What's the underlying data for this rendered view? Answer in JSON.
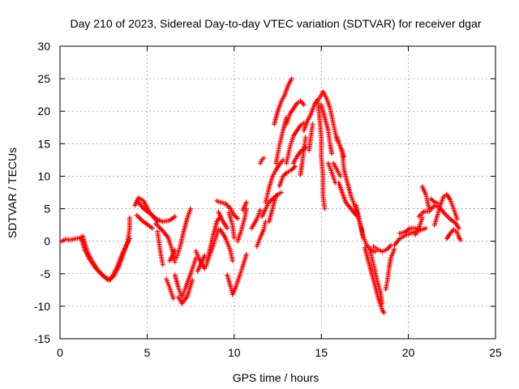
{
  "chart_data": {
    "type": "scatter",
    "title": "Day 210 of 2023, Sidereal Day-to-day VTEC variation (SDTVAR) for receiver dgar",
    "xlabel": "GPS time / hours",
    "ylabel": "SDTVAR / TECUs",
    "xlim": [
      0,
      25
    ],
    "ylim": [
      -15,
      30
    ],
    "xticks": [
      "0",
      "5",
      "10",
      "15",
      "20",
      "25"
    ],
    "yticks": [
      "-15",
      "-10",
      "-5",
      "0",
      "5",
      "10",
      "15",
      "20",
      "25",
      "30"
    ],
    "grid": true,
    "marker": "+",
    "color": "#ff0000",
    "tracks": [
      [
        [
          0.1,
          0.0
        ],
        [
          0.3,
          0.3
        ],
        [
          0.6,
          0.2
        ],
        [
          0.9,
          0.4
        ],
        [
          1.2,
          0.5
        ]
      ],
      [
        [
          1.2,
          0.6
        ],
        [
          1.4,
          -1.2
        ],
        [
          1.7,
          -2.8
        ],
        [
          2.0,
          -4.0
        ],
        [
          2.3,
          -4.8
        ],
        [
          2.6,
          -5.6
        ],
        [
          2.9,
          -5.9
        ],
        [
          3.2,
          -4.4
        ],
        [
          3.5,
          -2.4
        ],
        [
          3.8,
          -0.6
        ],
        [
          4.0,
          0.4
        ]
      ],
      [
        [
          1.3,
          0.8
        ],
        [
          1.6,
          -1.8
        ],
        [
          1.9,
          -3.3
        ],
        [
          2.2,
          -4.6
        ],
        [
          2.5,
          -5.4
        ],
        [
          2.8,
          -6.0
        ],
        [
          3.1,
          -5.3
        ],
        [
          3.4,
          -3.8
        ],
        [
          3.7,
          -1.5
        ],
        [
          3.9,
          0.0
        ]
      ],
      [
        [
          3.9,
          0.3
        ],
        [
          4.0,
          2.0
        ],
        [
          4.0,
          3.6
        ]
      ],
      [
        [
          4.3,
          5.5
        ],
        [
          4.5,
          6.7
        ],
        [
          4.8,
          6.2
        ],
        [
          5.1,
          4.6
        ],
        [
          5.4,
          3.6
        ],
        [
          5.6,
          3.0
        ]
      ],
      [
        [
          4.4,
          4.0
        ],
        [
          4.7,
          3.2
        ],
        [
          5.0,
          2.6
        ],
        [
          5.3,
          2.0
        ]
      ],
      [
        [
          4.5,
          6.0
        ],
        [
          4.8,
          5.0
        ],
        [
          5.2,
          4.2
        ],
        [
          5.5,
          3.5
        ],
        [
          5.9,
          3.0
        ],
        [
          6.3,
          3.2
        ],
        [
          6.6,
          3.8
        ]
      ],
      [
        [
          5.5,
          2.7
        ],
        [
          5.9,
          1.6
        ],
        [
          6.2,
          0.6
        ],
        [
          6.4,
          -1.0
        ],
        [
          6.6,
          -3.2
        ]
      ],
      [
        [
          5.6,
          1.5
        ],
        [
          5.7,
          -0.5
        ],
        [
          5.8,
          -2.2
        ],
        [
          5.9,
          -3.6
        ]
      ],
      [
        [
          6.1,
          -5.8
        ],
        [
          6.3,
          -7.2
        ],
        [
          6.5,
          -8.8
        ]
      ],
      [
        [
          6.6,
          -5.2
        ],
        [
          6.8,
          -7.2
        ],
        [
          7.0,
          -8.6
        ],
        [
          7.2,
          -7.2
        ],
        [
          7.5,
          -5.0
        ],
        [
          7.8,
          -2.6
        ]
      ],
      [
        [
          6.8,
          -8.6
        ],
        [
          7.0,
          -9.6
        ],
        [
          7.3,
          -8.5
        ],
        [
          7.6,
          -6.0
        ]
      ],
      [
        [
          6.7,
          -2.5
        ],
        [
          6.9,
          -0.8
        ],
        [
          7.1,
          1.5
        ],
        [
          7.3,
          3.5
        ],
        [
          7.5,
          5.0
        ]
      ],
      [
        [
          6.3,
          -3.0
        ],
        [
          6.6,
          -1.4
        ]
      ],
      [
        [
          7.8,
          -1.5
        ],
        [
          8.0,
          -2.8
        ],
        [
          8.3,
          -4.2
        ]
      ],
      [
        [
          7.9,
          -4.6
        ],
        [
          8.1,
          -3.4
        ],
        [
          8.3,
          -2.2
        ]
      ],
      [
        [
          8.4,
          -3.8
        ],
        [
          8.6,
          -1.2
        ],
        [
          8.8,
          1.0
        ],
        [
          9.0,
          3.0
        ],
        [
          9.2,
          3.8
        ]
      ],
      [
        [
          8.5,
          -2.8
        ],
        [
          8.7,
          -1.4
        ],
        [
          8.9,
          0.2
        ],
        [
          9.1,
          1.8
        ]
      ],
      [
        [
          9.1,
          4.5
        ],
        [
          9.3,
          3.3
        ],
        [
          9.6,
          2.0
        ]
      ],
      [
        [
          9.0,
          6.2
        ],
        [
          9.2,
          6.0
        ],
        [
          9.5,
          5.8
        ],
        [
          9.8,
          5.0
        ],
        [
          10.0,
          4.0
        ],
        [
          10.2,
          3.5
        ]
      ],
      [
        [
          9.2,
          1.8
        ],
        [
          9.5,
          0.5
        ],
        [
          9.8,
          -1.6
        ],
        [
          9.9,
          -3.0
        ]
      ],
      [
        [
          9.6,
          -5.2
        ],
        [
          9.8,
          -7.0
        ],
        [
          9.9,
          -8.2
        ],
        [
          10.1,
          -7.0
        ],
        [
          10.3,
          -5.4
        ],
        [
          10.5,
          -3.8
        ],
        [
          10.7,
          -2.0
        ]
      ],
      [
        [
          9.7,
          4.4
        ],
        [
          9.9,
          2.5
        ],
        [
          10.0,
          0.5
        ]
      ],
      [
        [
          10.2,
          0.0
        ],
        [
          10.4,
          1.6
        ],
        [
          10.6,
          3.5
        ],
        [
          10.7,
          5.0
        ]
      ],
      [
        [
          10.5,
          4.8
        ],
        [
          10.7,
          6.0
        ]
      ],
      [
        [
          11.0,
          2.0
        ],
        [
          11.3,
          3.4
        ],
        [
          11.5,
          4.8
        ]
      ],
      [
        [
          11.3,
          -0.8
        ],
        [
          11.5,
          0.6
        ],
        [
          11.7,
          1.8
        ],
        [
          11.8,
          3.0
        ]
      ],
      [
        [
          11.5,
          12.0
        ],
        [
          11.6,
          12.6
        ],
        [
          11.7,
          12.8
        ]
      ],
      [
        [
          11.6,
          3.8
        ],
        [
          11.8,
          5.0
        ],
        [
          12.0,
          6.0
        ],
        [
          12.2,
          6.5
        ],
        [
          12.5,
          7.2
        ],
        [
          12.7,
          7.5
        ]
      ],
      [
        [
          11.8,
          6.0
        ],
        [
          12.0,
          8.2
        ],
        [
          12.2,
          10.0
        ],
        [
          12.4,
          11.0
        ],
        [
          12.6,
          11.8
        ],
        [
          12.8,
          12.5
        ]
      ],
      [
        [
          12.0,
          3.0
        ],
        [
          12.2,
          5.0
        ],
        [
          12.4,
          7.0
        ]
      ],
      [
        [
          12.4,
          12.0
        ],
        [
          12.6,
          14.8
        ],
        [
          12.8,
          17.0
        ],
        [
          13.0,
          19.0
        ]
      ],
      [
        [
          12.3,
          18.0
        ],
        [
          12.5,
          20.0
        ],
        [
          12.7,
          21.5
        ],
        [
          12.9,
          22.5
        ],
        [
          13.1,
          24.0
        ],
        [
          13.3,
          25.0
        ]
      ],
      [
        [
          12.6,
          8.5
        ],
        [
          12.8,
          10.0
        ],
        [
          13.0,
          10.5
        ],
        [
          13.3,
          11.0
        ],
        [
          13.5,
          11.5
        ]
      ],
      [
        [
          13.0,
          18.0
        ],
        [
          13.2,
          19.6
        ],
        [
          13.4,
          20.4
        ],
        [
          13.6,
          21.2
        ],
        [
          13.8,
          21.6
        ],
        [
          14.0,
          21.0
        ]
      ],
      [
        [
          13.0,
          12.0
        ],
        [
          13.2,
          14.5
        ],
        [
          13.4,
          16.2
        ],
        [
          13.6,
          17.0
        ],
        [
          13.8,
          17.8
        ],
        [
          14.0,
          18.2
        ]
      ],
      [
        [
          13.4,
          12.0
        ],
        [
          13.6,
          13.0
        ],
        [
          13.8,
          13.8
        ],
        [
          14.1,
          14.4
        ]
      ],
      [
        [
          13.8,
          10.2
        ],
        [
          13.9,
          12.0
        ],
        [
          14.0,
          14.0
        ],
        [
          14.1,
          16.0
        ]
      ],
      [
        [
          14.0,
          17.0
        ],
        [
          14.2,
          18.5
        ],
        [
          14.4,
          19.5
        ],
        [
          14.6,
          21.0
        ],
        [
          14.8,
          21.8
        ]
      ],
      [
        [
          14.3,
          14.0
        ],
        [
          14.4,
          16.0
        ],
        [
          14.5,
          18.0
        ]
      ],
      [
        [
          14.8,
          21.5
        ],
        [
          14.9,
          19.0
        ],
        [
          15.0,
          16.0
        ],
        [
          15.0,
          13.0
        ],
        [
          15.1,
          10.0
        ],
        [
          15.1,
          7.0
        ],
        [
          15.2,
          5.0
        ]
      ],
      [
        [
          14.9,
          22.0
        ],
        [
          15.1,
          23.0
        ],
        [
          15.3,
          22.0
        ],
        [
          15.5,
          20.5
        ],
        [
          15.7,
          18.0
        ],
        [
          15.9,
          15.5
        ]
      ],
      [
        [
          15.0,
          21.0
        ],
        [
          15.2,
          19.0
        ],
        [
          15.4,
          17.0
        ],
        [
          15.5,
          15.0
        ],
        [
          15.6,
          13.5
        ]
      ],
      [
        [
          15.4,
          12.0
        ],
        [
          15.6,
          10.6
        ],
        [
          15.8,
          9.0
        ]
      ],
      [
        [
          15.7,
          12.0
        ],
        [
          15.9,
          11.0
        ],
        [
          16.1,
          10.0
        ]
      ],
      [
        [
          15.9,
          16.0
        ],
        [
          16.1,
          14.5
        ],
        [
          16.3,
          13.0
        ]
      ],
      [
        [
          16.2,
          14.0
        ],
        [
          16.3,
          11.0
        ],
        [
          16.5,
          9.0
        ],
        [
          16.7,
          7.0
        ],
        [
          16.9,
          5.6
        ],
        [
          17.1,
          4.0
        ],
        [
          17.3,
          2.0
        ],
        [
          17.4,
          0.5
        ]
      ],
      [
        [
          16.0,
          9.0
        ],
        [
          16.2,
          7.5
        ],
        [
          16.4,
          6.0
        ],
        [
          16.7,
          5.0
        ],
        [
          17.0,
          4.0
        ]
      ],
      [
        [
          17.0,
          5.5
        ],
        [
          17.2,
          3.0
        ],
        [
          17.4,
          0.8
        ],
        [
          17.6,
          -0.6
        ],
        [
          17.9,
          -1.4
        ],
        [
          18.1,
          -1.6
        ]
      ],
      [
        [
          17.5,
          -1.0
        ],
        [
          17.7,
          -3.0
        ],
        [
          17.9,
          -5.0
        ],
        [
          18.1,
          -7.0
        ],
        [
          18.3,
          -9.0
        ],
        [
          18.5,
          -10.6
        ],
        [
          18.6,
          -11.0
        ]
      ],
      [
        [
          17.8,
          -1.4
        ],
        [
          18.0,
          -3.6
        ],
        [
          18.2,
          -6.0
        ],
        [
          18.4,
          -8.0
        ],
        [
          18.5,
          -9.6
        ]
      ],
      [
        [
          18.0,
          -0.8
        ],
        [
          18.2,
          -1.2
        ],
        [
          18.5,
          -1.6
        ],
        [
          18.8,
          -1.2
        ],
        [
          19.0,
          -0.6
        ]
      ],
      [
        [
          18.7,
          -7.4
        ],
        [
          18.8,
          -6.0
        ],
        [
          18.9,
          -4.0
        ],
        [
          19.0,
          -2.5
        ],
        [
          19.2,
          -1.2
        ]
      ],
      [
        [
          19.2,
          -0.6
        ],
        [
          19.5,
          0.4
        ],
        [
          19.9,
          1.0
        ],
        [
          20.3,
          1.4
        ],
        [
          20.6,
          1.6
        ],
        [
          21.0,
          2.0
        ]
      ],
      [
        [
          19.5,
          1.2
        ],
        [
          19.8,
          1.4
        ],
        [
          20.1,
          2.0
        ],
        [
          20.4,
          2.0
        ],
        [
          20.7,
          1.8
        ]
      ],
      [
        [
          20.4,
          1.0
        ],
        [
          20.6,
          2.0
        ],
        [
          20.8,
          3.6
        ]
      ],
      [
        [
          20.8,
          8.4
        ],
        [
          21.0,
          7.2
        ],
        [
          21.1,
          6.0
        ],
        [
          21.2,
          5.0
        ]
      ],
      [
        [
          20.6,
          3.8
        ],
        [
          20.9,
          4.6
        ],
        [
          21.2,
          4.6
        ],
        [
          21.5,
          5.5
        ],
        [
          21.8,
          5.2
        ],
        [
          22.1,
          4.2
        ],
        [
          22.4,
          3.4
        ],
        [
          22.7,
          2.8
        ],
        [
          22.9,
          2.0
        ]
      ],
      [
        [
          21.5,
          2.5
        ],
        [
          21.8,
          5.2
        ],
        [
          22.0,
          6.8
        ],
        [
          22.2,
          7.2
        ],
        [
          22.4,
          6.4
        ],
        [
          22.6,
          5.0
        ],
        [
          22.8,
          3.4
        ]
      ],
      [
        [
          21.3,
          6.5
        ],
        [
          21.5,
          6.0
        ],
        [
          21.7,
          5.8
        ]
      ],
      [
        [
          22.2,
          0.4
        ],
        [
          22.4,
          1.2
        ],
        [
          22.6,
          1.8
        ],
        [
          22.8,
          1.4
        ],
        [
          22.9,
          0.6
        ],
        [
          23.0,
          0.2
        ]
      ]
    ]
  }
}
